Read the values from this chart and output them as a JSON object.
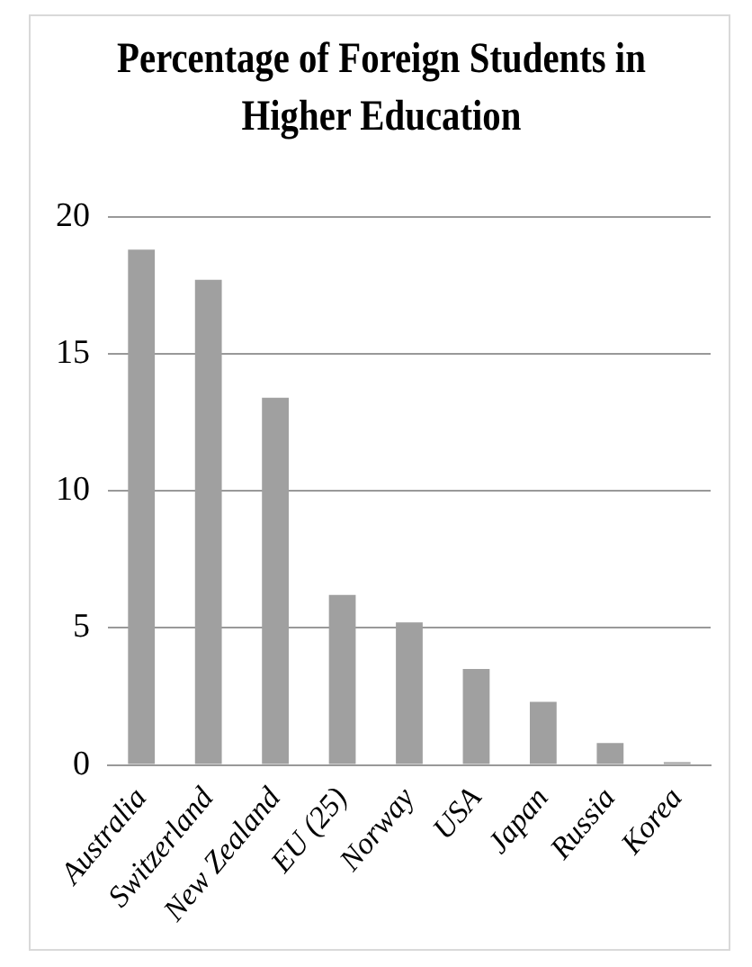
{
  "chart_data": {
    "type": "bar",
    "title": "Percentage of Foreign Students in Higher Education",
    "categories": [
      "Australia",
      "Switzerland",
      "New Zealand",
      "EU (25)",
      "Norway",
      "USA",
      "Japan",
      "Russia",
      "Korea"
    ],
    "values": [
      18.8,
      17.7,
      13.4,
      6.2,
      5.2,
      3.5,
      2.3,
      0.8,
      0.1
    ],
    "color": "#a0a0a0",
    "ylim": [
      0,
      20
    ],
    "yticks": [
      0,
      5,
      10,
      15,
      20
    ],
    "grid": "y"
  }
}
